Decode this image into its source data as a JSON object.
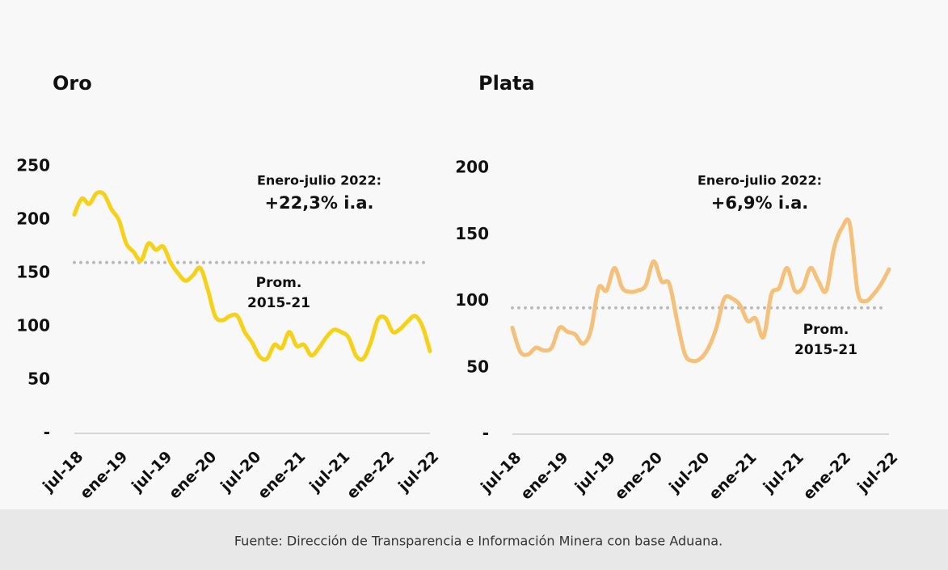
{
  "chart_data": [
    {
      "type": "line",
      "title": "Oro",
      "color": "#f7d117",
      "categories": [
        "jul-18",
        null,
        null,
        null,
        null,
        null,
        "ene-19",
        null,
        null,
        null,
        null,
        null,
        "jul-19",
        null,
        null,
        null,
        null,
        null,
        "ene-20",
        null,
        null,
        null,
        null,
        null,
        "jul-20",
        null,
        null,
        null,
        null,
        null,
        "ene-21",
        null,
        null,
        null,
        null,
        null,
        "jul-21",
        null,
        null,
        null,
        null,
        null,
        "ene-22",
        null,
        null,
        null,
        null,
        null,
        "jul-22"
      ],
      "values": [
        205,
        220,
        215,
        225,
        224,
        210,
        200,
        178,
        170,
        162,
        178,
        172,
        175,
        160,
        150,
        143,
        148,
        155,
        135,
        110,
        106,
        110,
        110,
        95,
        85,
        72,
        70,
        83,
        80,
        95,
        82,
        83,
        73,
        80,
        90,
        97,
        95,
        90,
        73,
        70,
        85,
        107,
        108,
        95,
        98,
        105,
        110,
        100,
        77
      ],
      "ylim": [
        0,
        250
      ],
      "yticks": [
        {
          "value": 0,
          "label": "-"
        },
        50,
        100,
        150,
        200,
        250
      ],
      "reference": {
        "value": 160,
        "label": [
          "Prom.",
          "2015-21"
        ]
      },
      "annotation": [
        "Enero-julio 2022:",
        "+22,3% i.a."
      ]
    },
    {
      "type": "line",
      "title": "Plata",
      "color": "#f5c07a",
      "categories": [
        "jul-18",
        null,
        null,
        null,
        null,
        null,
        "ene-19",
        null,
        null,
        null,
        null,
        null,
        "jul-19",
        null,
        null,
        null,
        null,
        null,
        "ene-20",
        null,
        null,
        null,
        null,
        null,
        "jul-20",
        null,
        null,
        null,
        null,
        null,
        "ene-21",
        null,
        null,
        null,
        null,
        null,
        "jul-21",
        null,
        null,
        null,
        null,
        null,
        "ene-22",
        null,
        null,
        null,
        null,
        null,
        "jul-22"
      ],
      "values": [
        80,
        62,
        60,
        65,
        63,
        65,
        80,
        77,
        75,
        68,
        78,
        110,
        108,
        125,
        110,
        107,
        108,
        112,
        130,
        115,
        113,
        85,
        60,
        55,
        57,
        65,
        80,
        102,
        102,
        97,
        85,
        87,
        73,
        105,
        110,
        125,
        108,
        110,
        125,
        115,
        108,
        140,
        155,
        158,
        107,
        100,
        105,
        113,
        124
      ],
      "ylim": [
        0,
        200
      ],
      "yticks": [
        {
          "value": 0,
          "label": "-"
        },
        50,
        100,
        150,
        200
      ],
      "reference": {
        "value": 95,
        "label": [
          "Prom.",
          "2015-21"
        ]
      },
      "annotation": [
        "Enero-julio 2022:",
        "+6,9% i.a."
      ]
    }
  ],
  "footer": "Fuente: Dirección de Transparencia e Información Minera con base Aduana."
}
